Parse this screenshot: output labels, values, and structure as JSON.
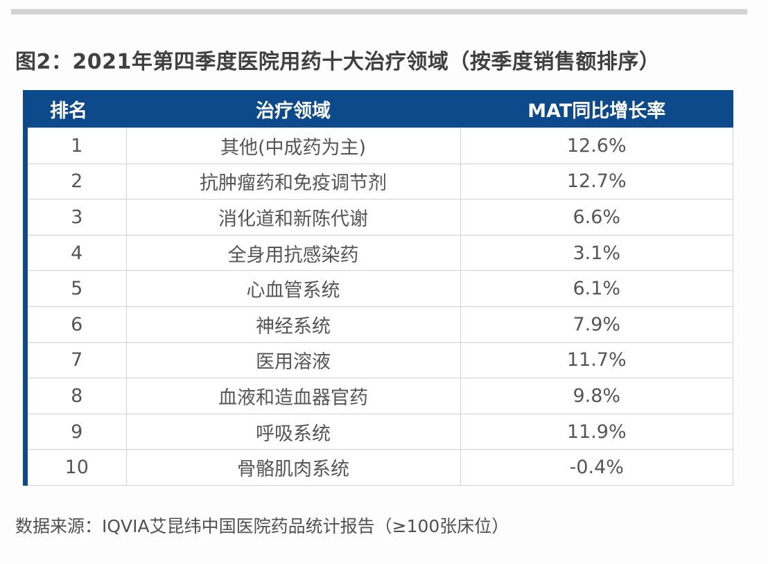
{
  "title": "图2：2021年第四季度医院用药十大治疗领域（按季度销售额排序）",
  "table": {
    "headers": [
      "排名",
      "治疗领域",
      "MAT同比增长率"
    ],
    "rows": [
      [
        "1",
        "其他(中成药为主)",
        "12.6%"
      ],
      [
        "2",
        "抗肿瘤药和免疫调节剂",
        "12.7%"
      ],
      [
        "3",
        "消化道和新陈代谢",
        "6.6%"
      ],
      [
        "4",
        "全身用抗感染药",
        "3.1%"
      ],
      [
        "5",
        "心血管系统",
        "6.1%"
      ],
      [
        "6",
        "神经系统",
        "7.9%"
      ],
      [
        "7",
        "医用溶液",
        "11.7%"
      ],
      [
        "8",
        "血液和造血器官药",
        "9.8%"
      ],
      [
        "9",
        "呼吸系统",
        "11.9%"
      ],
      [
        "10",
        "骨骼肌肉系统",
        "-0.4%"
      ]
    ]
  },
  "footer": "数据来源：IQVIA艾昆纬中国医院药品统计报告（≥100张床位）",
  "colors": {
    "header_bg": "#0d4a8c",
    "header_text": "#ffffff",
    "border": "#cfd3d8"
  }
}
